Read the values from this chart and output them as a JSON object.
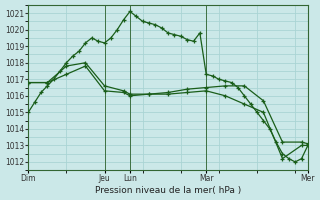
{
  "bg_color": "#cbe8e8",
  "grid_color": "#aad4d4",
  "line_color": "#1a5e1a",
  "xlabel": "Pression niveau de la mer( hPa )",
  "ylim": [
    1011.5,
    1021.5
  ],
  "yticks": [
    1012,
    1013,
    1014,
    1015,
    1016,
    1017,
    1018,
    1019,
    1020,
    1021
  ],
  "day_labels": [
    "Dim",
    "Jeu",
    "Lun",
    "Mar",
    "Mer"
  ],
  "day_positions": [
    0,
    12,
    16,
    28,
    44
  ],
  "series1_x": [
    0,
    1,
    2,
    3,
    4,
    5,
    6,
    7,
    8,
    9,
    10,
    11,
    12,
    13,
    14,
    15,
    16,
    17,
    18,
    19,
    20,
    21,
    22,
    23,
    24,
    25,
    26,
    27,
    28,
    29,
    30,
    31,
    32,
    33,
    34,
    35,
    36,
    37,
    38,
    39,
    40,
    41,
    42,
    43,
    44
  ],
  "series1_y": [
    1015.0,
    1015.6,
    1016.2,
    1016.6,
    1017.0,
    1017.5,
    1018.0,
    1018.4,
    1018.7,
    1019.2,
    1019.5,
    1019.3,
    1019.2,
    1019.5,
    1020.0,
    1020.6,
    1021.1,
    1020.8,
    1020.5,
    1020.4,
    1020.3,
    1020.1,
    1019.8,
    1019.7,
    1019.6,
    1019.4,
    1019.3,
    1019.8,
    1017.3,
    1017.2,
    1017.0,
    1016.9,
    1016.8,
    1016.5,
    1016.0,
    1015.5,
    1015.0,
    1014.5,
    1014.0,
    1013.2,
    1012.5,
    1012.2,
    1012.0,
    1012.2,
    1013.0
  ],
  "series2_x": [
    0,
    3,
    6,
    9,
    12,
    15,
    16,
    19,
    22,
    25,
    28,
    31,
    34,
    37,
    40,
    43,
    44
  ],
  "series2_y": [
    1016.8,
    1016.8,
    1017.8,
    1018.0,
    1016.6,
    1016.3,
    1016.1,
    1016.1,
    1016.2,
    1016.4,
    1016.5,
    1016.6,
    1016.6,
    1015.7,
    1013.2,
    1013.2,
    1013.1
  ],
  "series3_x": [
    0,
    3,
    6,
    9,
    12,
    15,
    16,
    19,
    22,
    25,
    28,
    31,
    34,
    37,
    40,
    43,
    44
  ],
  "series3_y": [
    1016.8,
    1016.8,
    1017.3,
    1017.8,
    1016.3,
    1016.2,
    1016.0,
    1016.1,
    1016.1,
    1016.2,
    1016.3,
    1016.0,
    1015.5,
    1015.0,
    1012.2,
    1013.0,
    1013.0
  ]
}
